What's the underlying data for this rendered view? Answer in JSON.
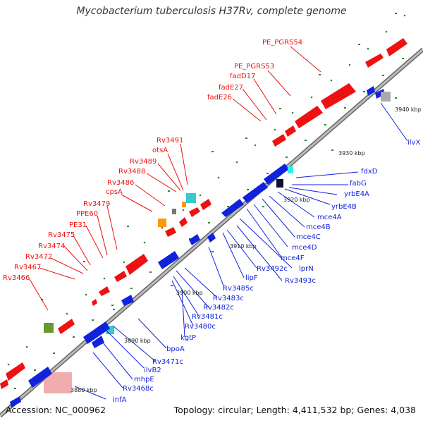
{
  "title": "Mycobacterium tuberculosis H37Rv, complete genome",
  "footer": {
    "accession": "Accession: NC_000962",
    "summary": "Topology: circular; Length: 4,411,532 bp; Genes: 4,038"
  },
  "ticks": [
    {
      "text": "3880 kbp"
    },
    {
      "text": "3890 kbp"
    },
    {
      "text": "3900 kbp"
    },
    {
      "text": "3910 kbp"
    },
    {
      "text": "3920 kbp"
    },
    {
      "text": "3930 kbp"
    },
    {
      "text": "3940 kbp"
    }
  ],
  "forward_labels": [
    "PE_PGRS54",
    "PE_PGRS53",
    "fadD17",
    "fadE27",
    "fadE26",
    "Rv3491",
    "otsA",
    "Rv3489",
    "Rv3488",
    "Rv3486",
    "cpsA",
    "Rv3479",
    "PPE60",
    "PE31",
    "Rv3475",
    "Rv3474",
    "Rv3472",
    "Rv3467",
    "Rv3466"
  ],
  "reverse_labels": [
    "ilvX",
    "fdxD",
    "fabG",
    "yrbE4A",
    "yrbE4B",
    "mce4A",
    "mce4B",
    "mce4C",
    "mce4D",
    "mce4F",
    "lprN",
    "Rv3493c",
    "Rv3492c",
    "lipF",
    "Rv3485c",
    "Rv3483c",
    "Rv3482c",
    "Rv3481c",
    "Rv3480c",
    "kgtP",
    "bpoA",
    "Rv3471c",
    "ilvB2",
    "mhpE",
    "Rv3468c",
    "infA"
  ],
  "colors": {
    "forward": "#ee1111",
    "reverse": "#1122dd",
    "backbone": "#999999",
    "gc_dots": "#228822",
    "orange": "#ff9900",
    "cyan": "#33cccc",
    "olive": "#669933",
    "pink": "#ee9999"
  }
}
